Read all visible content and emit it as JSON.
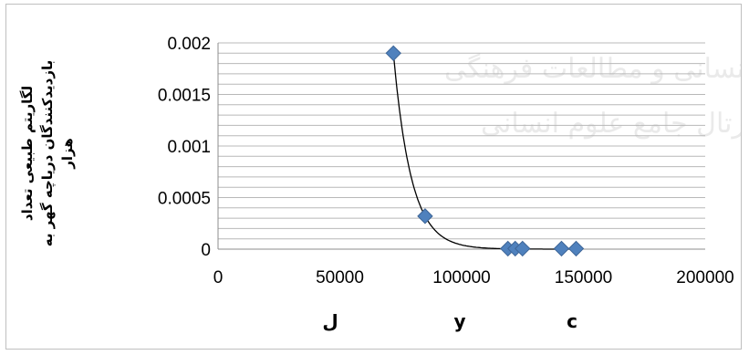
{
  "chart_data": {
    "type": "scatter",
    "title": "",
    "ylabel_lines": [
      "لگاریتم طبیعی تعداد",
      "بازدیدکنندگان دریاچه گهر به",
      "هزار"
    ],
    "x_category_labels": [
      "ل",
      "y",
      "c"
    ],
    "xlim": [
      0,
      200000
    ],
    "ylim": [
      0,
      0.002
    ],
    "x_ticks": [
      0,
      50000,
      100000,
      150000,
      200000
    ],
    "x_tick_labels": [
      "0",
      "50000",
      "100000",
      "150000",
      "200000"
    ],
    "y_ticks": [
      0,
      0.0005,
      0.001,
      0.0015,
      0.002
    ],
    "y_tick_labels": [
      "0",
      "0.0005",
      "0.001",
      "0.0015",
      "0.002"
    ],
    "grid": true,
    "series": [
      {
        "marker": "diamond",
        "color": "#4f81bd",
        "points": [
          {
            "x": 72000,
            "y": 0.0019
          },
          {
            "x": 85000,
            "y": 0.00032
          },
          {
            "x": 119000,
            "y": 5e-06
          },
          {
            "x": 122000,
            "y": 5e-06
          },
          {
            "x": 125000,
            "y": 5e-06
          },
          {
            "x": 141000,
            "y": 5e-06
          },
          {
            "x": 147000,
            "y": 5e-06
          }
        ]
      }
    ],
    "trendline": {
      "type": "exponential",
      "color": "#000000"
    }
  }
}
